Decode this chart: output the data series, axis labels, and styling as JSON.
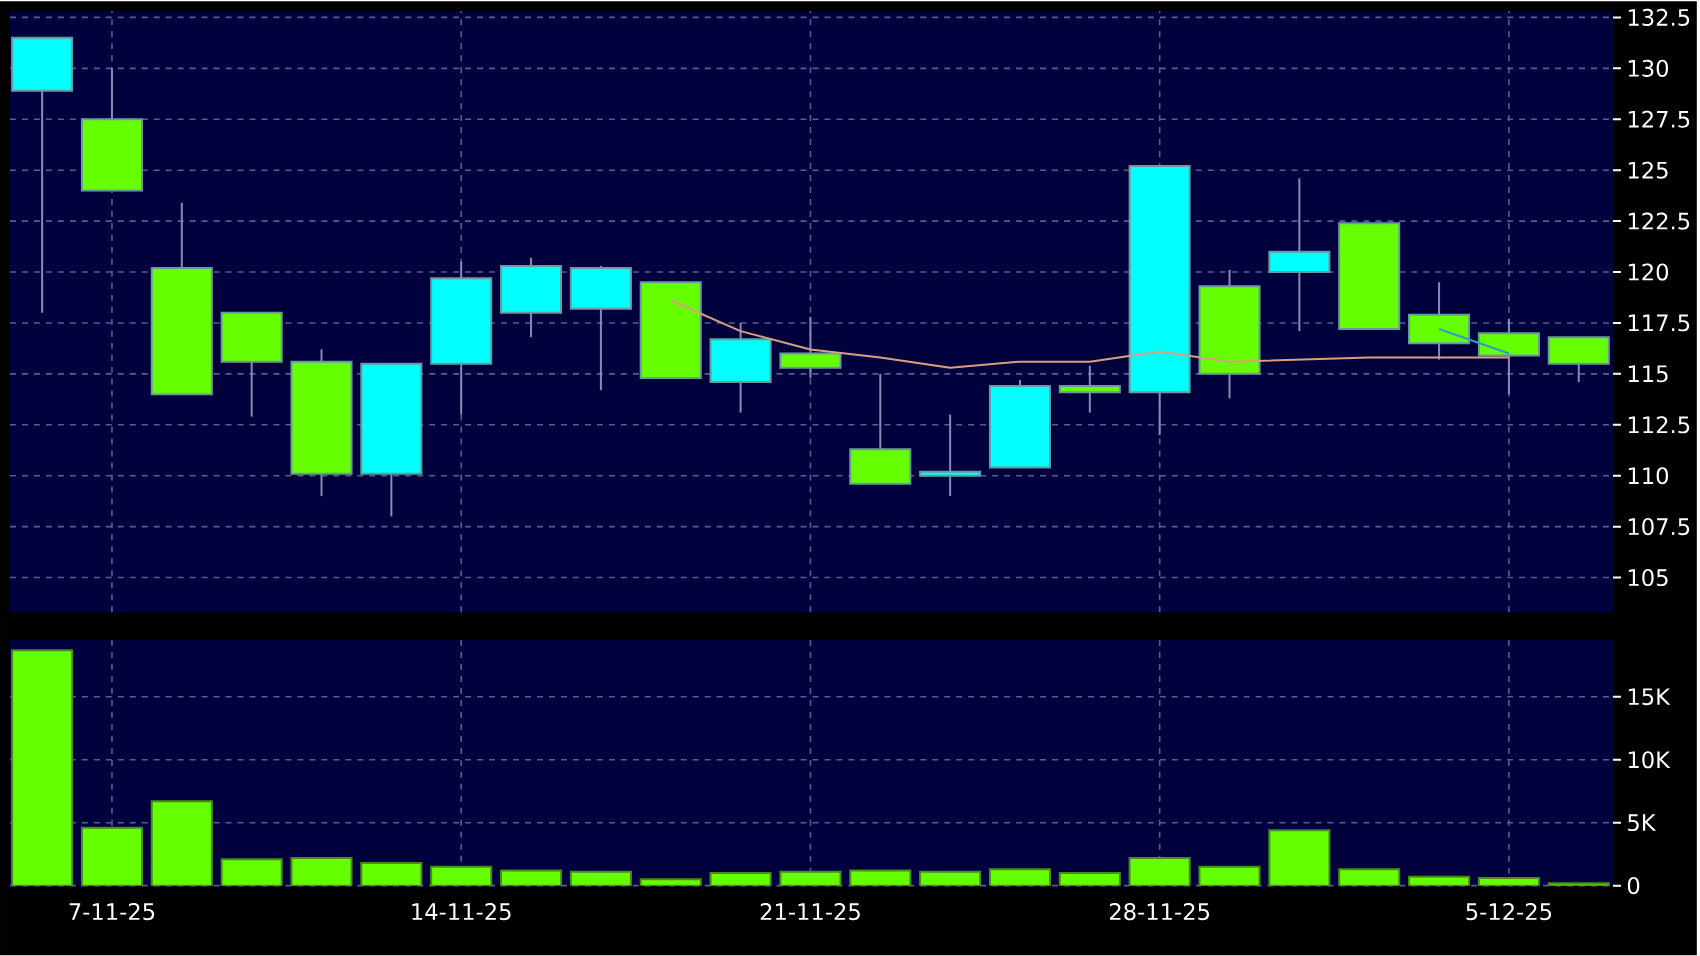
{
  "chart_data": [
    {
      "type": "candlestick",
      "categories": [
        null,
        null,
        null,
        null,
        null,
        null,
        null,
        null,
        null,
        null,
        null,
        null,
        null,
        null,
        null,
        null,
        null,
        null,
        null,
        null,
        null,
        null,
        null
      ],
      "ohlc": [
        [
          128.9,
          131.5,
          118,
          131.5
        ],
        [
          127.5,
          130,
          124,
          124
        ],
        [
          120.2,
          123.4,
          114,
          114
        ],
        [
          118,
          118,
          112.9,
          115.6
        ],
        [
          115.6,
          116.2,
          109,
          110.1
        ],
        [
          110.1,
          115.5,
          108,
          115.5
        ],
        [
          115.5,
          120.5,
          113,
          119.7
        ],
        [
          118,
          120.7,
          116.8,
          120.3
        ],
        [
          118.2,
          120.3,
          114.2,
          120.2
        ],
        [
          119.5,
          119.5,
          114.8,
          114.8
        ],
        [
          114.6,
          117.5,
          113.1,
          116.7
        ],
        [
          116,
          117.8,
          114.8,
          115.3
        ],
        [
          111.3,
          115,
          109.6,
          109.6
        ],
        [
          110,
          113,
          109,
          110.2
        ],
        [
          110.4,
          114.7,
          110.4,
          114.4
        ],
        [
          114.4,
          115.4,
          113.1,
          114.1
        ],
        [
          114.1,
          125.2,
          112,
          125.2
        ],
        [
          119.3,
          120.1,
          113.8,
          115
        ],
        [
          120,
          124.6,
          117.1,
          121
        ],
        [
          122.4,
          122.4,
          117.2,
          117.2
        ],
        [
          117.9,
          119.5,
          115.7,
          116.5
        ],
        [
          117,
          117.7,
          114,
          115.9
        ],
        [
          116.8,
          116.8,
          114.6,
          115.5
        ]
      ],
      "colors": [
        "#00ffff",
        "#66ff00",
        "#66ff00",
        "#66ff00",
        "#66ff00",
        "#00ffff",
        "#00ffff",
        "#00ffff",
        "#00ffff",
        "#66ff00",
        "#00ffff",
        "#66ff00",
        "#66ff00",
        "#00ffff",
        "#00ffff",
        "#66ff00",
        "#00ffff",
        "#66ff00",
        "#00ffff",
        "#66ff00",
        "#66ff00",
        "#66ff00",
        "#66ff00"
      ],
      "series": [
        {
          "type": "line",
          "color": "#d8a080",
          "values": [
            null,
            null,
            null,
            null,
            null,
            null,
            null,
            null,
            null,
            118.6,
            117.1,
            116.2,
            115.8,
            115.3,
            115.6,
            115.6,
            116.1,
            115.6,
            115.7,
            115.8,
            115.8,
            115.8,
            null
          ]
        },
        {
          "type": "line",
          "color": "#3399cc",
          "values": [
            null,
            null,
            null,
            null,
            null,
            null,
            null,
            null,
            null,
            null,
            null,
            null,
            null,
            null,
            null,
            null,
            null,
            null,
            null,
            null,
            117.2,
            116.0,
            null
          ]
        }
      ],
      "ylim": [
        103.3,
        132.8
      ],
      "yticks": [
        105,
        107.5,
        110,
        112.5,
        115,
        117.5,
        120,
        122.5,
        125,
        127.5,
        130,
        132.5
      ],
      "grid": true
    },
    {
      "type": "bar",
      "categories": [
        null,
        "7-11-25",
        null,
        null,
        null,
        null,
        "14-11-25",
        null,
        null,
        null,
        null,
        "21-11-25",
        null,
        null,
        null,
        null,
        "28-11-25",
        null,
        null,
        null,
        null,
        "5-12-25",
        null
      ],
      "values": [
        18700,
        4600,
        6700,
        2100,
        2200,
        1800,
        1500,
        1200,
        1100,
        500,
        1000,
        1100,
        1200,
        1100,
        1300,
        1000,
        2200,
        1500,
        4400,
        1300,
        700,
        600,
        200
      ],
      "color": "#66ff00",
      "ylim": [
        0,
        19500
      ],
      "yticks": [
        0,
        {
          "value": 5000,
          "label": "5K"
        },
        {
          "value": 10000,
          "label": "10K"
        },
        {
          "value": 15000,
          "label": "15K"
        }
      ],
      "grid": true
    }
  ]
}
